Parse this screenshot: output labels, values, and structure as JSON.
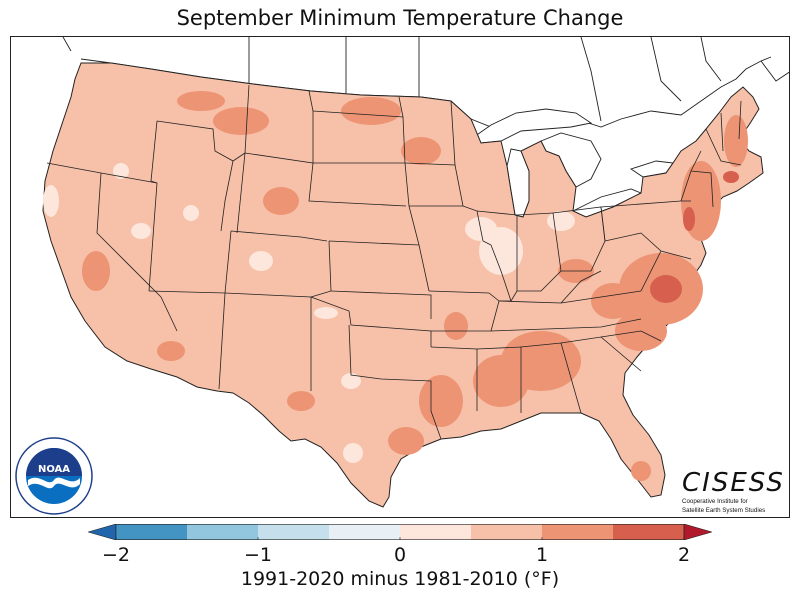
{
  "title": "September Minimum Temperature Change",
  "colorbar": {
    "label": "1991-2020 minus 1981-2010 (°F)",
    "ticks": [
      {
        "value": -2,
        "label": "−2"
      },
      {
        "value": -1,
        "label": "−1"
      },
      {
        "value": 0,
        "label": "0"
      },
      {
        "value": 1,
        "label": "1"
      },
      {
        "value": 2,
        "label": "2"
      }
    ],
    "range": [
      -2.5,
      2.5
    ],
    "bins": [
      {
        "from": -2.5,
        "to": -2.0,
        "color": "#2166ac"
      },
      {
        "from": -2.0,
        "to": -1.5,
        "color": "#4393c3"
      },
      {
        "from": -1.5,
        "to": -1.0,
        "color": "#92c5de"
      },
      {
        "from": -1.0,
        "to": -0.5,
        "color": "#c5dfec"
      },
      {
        "from": -0.5,
        "to": 0.0,
        "color": "#e8f0f5"
      },
      {
        "from": 0.0,
        "to": 0.5,
        "color": "#fde6dc"
      },
      {
        "from": 0.5,
        "to": 1.0,
        "color": "#f7c0a8"
      },
      {
        "from": 1.0,
        "to": 1.5,
        "color": "#ec9474"
      },
      {
        "from": 1.5,
        "to": 2.0,
        "color": "#d6604d"
      },
      {
        "from": 2.0,
        "to": 2.5,
        "color": "#b2182b"
      }
    ],
    "extend": "both"
  },
  "logos": {
    "noaa": {
      "text": "NOAA",
      "ring_text": "NATIONAL OCEANIC AND ATMOSPHERIC ADMINISTRATION",
      "bottom_text": "U.S. DEPARTMENT OF COMMERCE"
    },
    "cisess": {
      "name": "CISESS",
      "sub1": "Cooperative Institute for",
      "sub2": "Satellite Earth System Studies"
    }
  },
  "map": {
    "region": "Contiguous United States",
    "base_color": "#f7c0a8",
    "colors": {
      "light": "#fde6dc",
      "mid": "#f7c0a8",
      "high": "#ec9474",
      "highest": "#d6604d",
      "border": "#222222",
      "water": "#ffffff"
    }
  }
}
